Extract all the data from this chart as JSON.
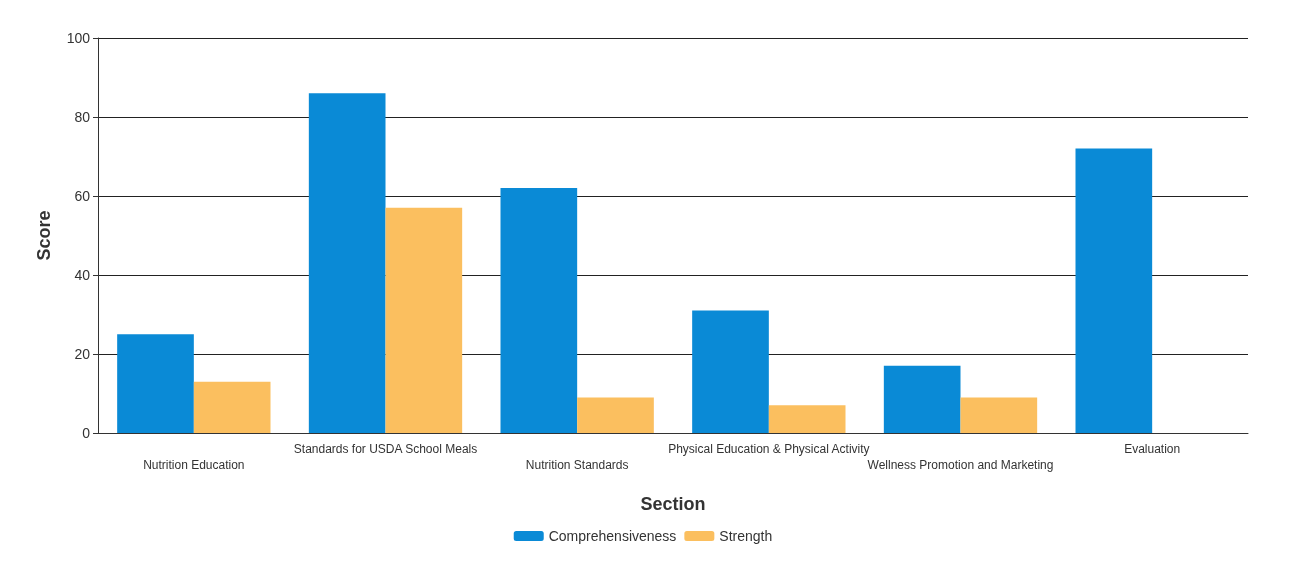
{
  "chart_data": {
    "type": "bar",
    "xlabel": "Section",
    "ylabel": "Score",
    "categories": [
      "Nutrition Education",
      "Standards for USDA School Meals",
      "Nutrition Standards",
      "Physical Education & Physical Activity",
      "Wellness Promotion and Marketing",
      "Evaluation"
    ],
    "series": [
      {
        "name": "Comprehensiveness",
        "color": "#0a8ad6",
        "values": [
          25,
          86,
          62,
          31,
          17,
          72
        ]
      },
      {
        "name": "Strength",
        "color": "#fbbf5f",
        "values": [
          13,
          57,
          9,
          7,
          9,
          null
        ]
      }
    ],
    "ylim": [
      0,
      100
    ],
    "yticks": [
      0,
      20,
      40,
      60,
      80,
      100
    ],
    "grid": "y",
    "legend": "bottom"
  }
}
